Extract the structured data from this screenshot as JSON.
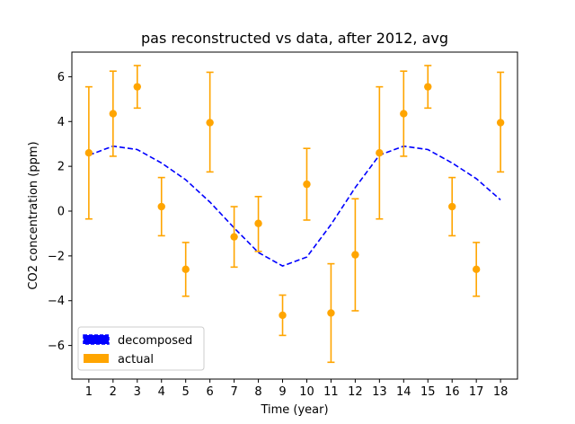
{
  "chart_data": {
    "type": "line",
    "title": "pas reconstructed vs data, after 2012, avg",
    "xlabel": "Time (year)",
    "ylabel": "CO2 concentration (ppm)",
    "xlim": [
      0.3,
      18.7
    ],
    "ylim": [
      -7.5,
      7.1
    ],
    "x_ticks": [
      "1",
      "2",
      "3",
      "4",
      "5",
      "6",
      "7",
      "8",
      "9",
      "10",
      "11",
      "12",
      "13",
      "14",
      "15",
      "16",
      "17",
      "18"
    ],
    "y_ticks": [
      "6",
      "4",
      "2",
      "0",
      "−2",
      "−4",
      "−6"
    ],
    "y_tick_values": [
      6,
      4,
      2,
      0,
      -2,
      -4,
      -6
    ],
    "legend_position": "lower-left",
    "series": [
      {
        "name": "decomposed",
        "color": "#0000ff",
        "style": "dashed",
        "x": [
          1,
          2,
          3,
          4,
          5,
          6,
          7,
          8,
          9,
          10,
          11,
          12,
          13,
          14,
          15,
          16,
          17,
          18
        ],
        "y": [
          2.5,
          2.9,
          2.75,
          2.15,
          1.4,
          0.4,
          -0.75,
          -1.85,
          -2.45,
          -2.05,
          -0.6,
          1.05,
          2.5,
          2.9,
          2.75,
          2.15,
          1.45,
          0.5
        ]
      },
      {
        "name": "actual",
        "color": "#ffa500",
        "style": "errorbar",
        "x": [
          1,
          2,
          3,
          4,
          5,
          6,
          7,
          8,
          9,
          10,
          11,
          12,
          13,
          14,
          15,
          16,
          17,
          18
        ],
        "y": [
          2.6,
          4.35,
          5.55,
          0.2,
          -2.6,
          3.95,
          -1.15,
          -0.55,
          -4.65,
          1.2,
          -4.55,
          -1.95,
          2.6,
          4.35,
          5.55,
          0.2,
          -2.6,
          3.95
        ],
        "y_low": [
          -0.35,
          2.45,
          4.6,
          -1.1,
          -3.8,
          1.75,
          -2.5,
          -1.8,
          -5.55,
          -0.4,
          -6.75,
          -4.45,
          -0.35,
          2.45,
          4.6,
          -1.1,
          -3.8,
          1.75
        ],
        "y_high": [
          5.55,
          6.25,
          6.5,
          1.5,
          -1.4,
          6.2,
          0.2,
          0.65,
          -3.75,
          2.8,
          -2.35,
          0.55,
          5.55,
          6.25,
          6.5,
          1.5,
          -1.4,
          6.2
        ]
      }
    ]
  }
}
